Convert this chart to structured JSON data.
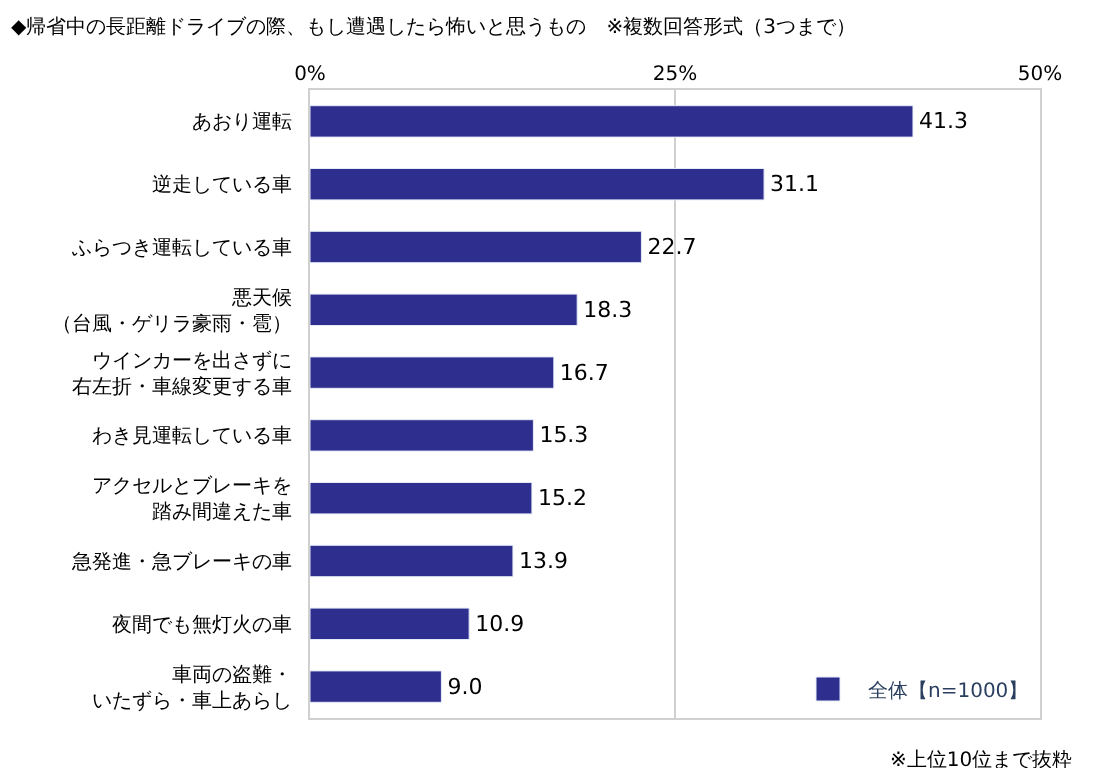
{
  "chart_data": {
    "type": "bar",
    "orientation": "horizontal",
    "title": "◆帰省中の長距離ドライブの際、もし遭遇したら怖いと思うもの　※複数回答形式（3つまで）",
    "categories": [
      "あおり運転",
      "逆走している車",
      "ふらつき運転している車",
      "悪天候（台風・ゲリラ豪雨・雹）",
      "ウインカーを出さずに右左折・車線変更する車",
      "わき見運転している車",
      "アクセルとブレーキを踏み間違えた車",
      "急発進・急ブレーキの車",
      "夜間でも無灯火の車",
      "車両の盗難・いたずら・車上あらし"
    ],
    "series": [
      {
        "name": "全体【n=1000】",
        "color": "#2e2e8f",
        "values": [
          41.3,
          31.1,
          22.7,
          18.3,
          16.7,
          15.3,
          15.2,
          13.9,
          10.9,
          9.0
        ]
      }
    ],
    "value_labels": [
      "41.3",
      "31.1",
      "22.7",
      "18.3",
      "16.7",
      "15.3",
      "15.2",
      "13.9",
      "10.9",
      "9.0"
    ],
    "xlim": [
      0,
      50
    ],
    "xticks": [
      {
        "value": 0,
        "label": "0%"
      },
      {
        "value": 25,
        "label": "25%"
      },
      {
        "value": 50,
        "label": "50%"
      }
    ],
    "grid": "x",
    "legend": "bottom right",
    "annotations": [
      "※上位10位まで抜粋"
    ]
  }
}
